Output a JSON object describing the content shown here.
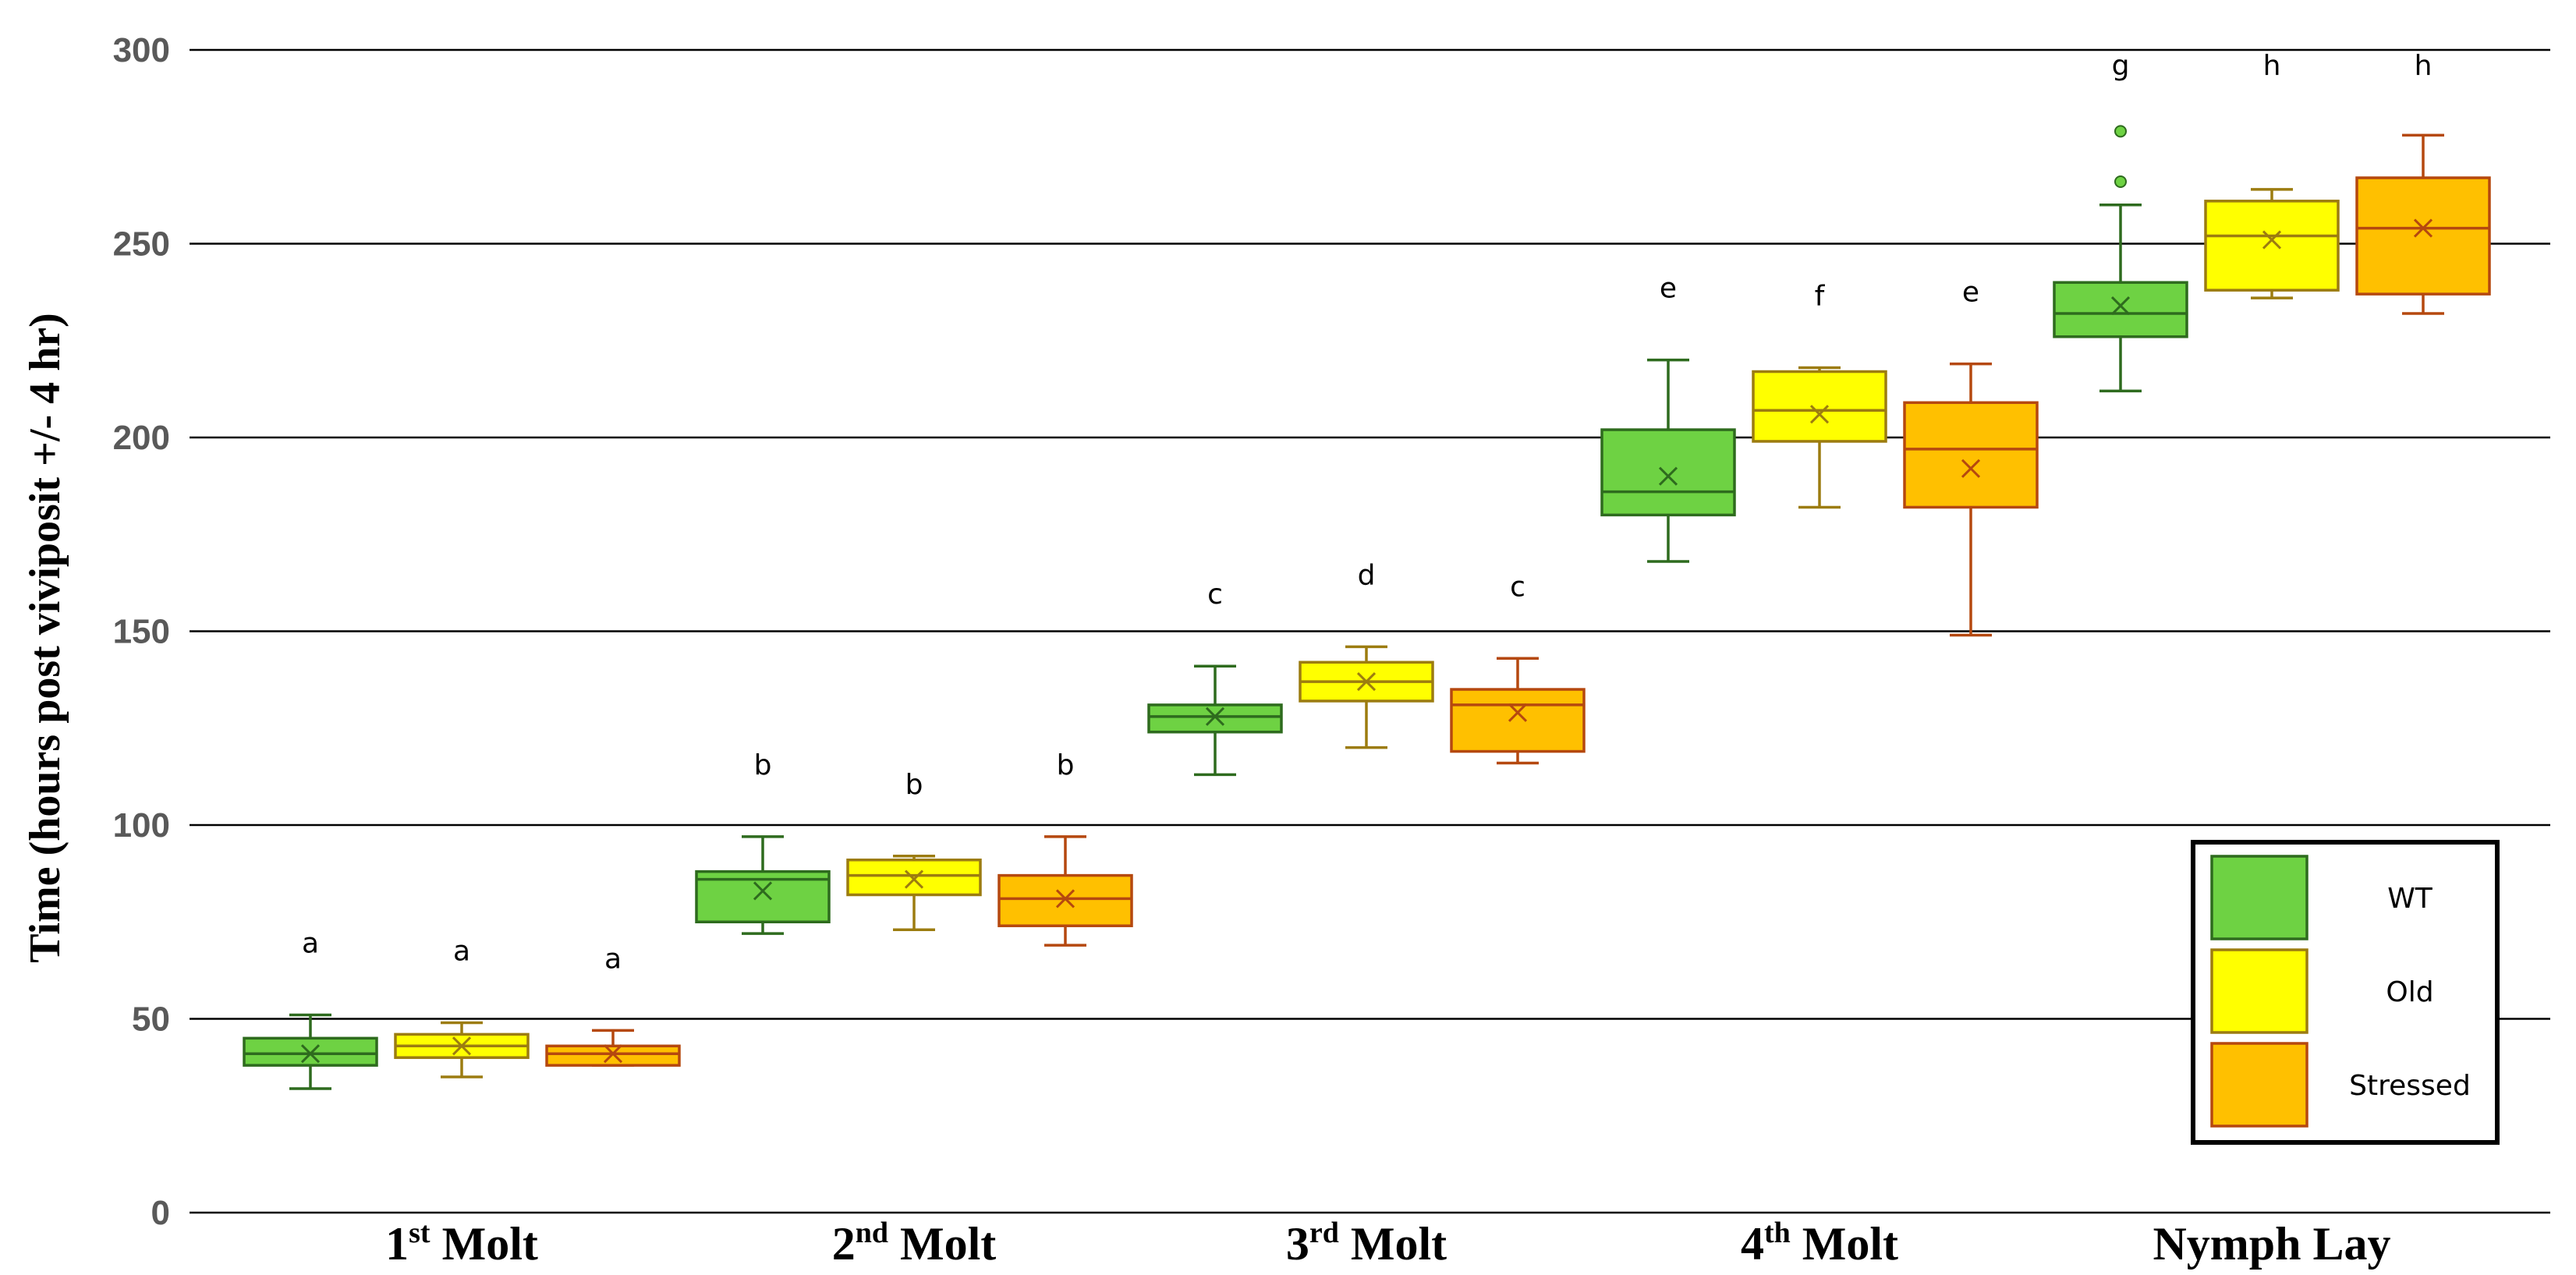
{
  "chart_data": {
    "type": "box",
    "ylabel": "Time (hours post viviposit +/- 4 hr)",
    "ylim": [
      0,
      300
    ],
    "yticks": [
      0,
      50,
      100,
      150,
      200,
      250,
      300
    ],
    "grid": true,
    "legend_position": "bottom-right",
    "categories": [
      {
        "main": "1",
        "sup": "st",
        "rest": " Molt"
      },
      {
        "main": "2",
        "sup": "nd",
        "rest": " Molt"
      },
      {
        "main": "3",
        "sup": "rd",
        "rest": " Molt"
      },
      {
        "main": "4",
        "sup": "th",
        "rest": " Molt"
      },
      {
        "main": "Nymph Lay",
        "sup": "",
        "rest": ""
      }
    ],
    "series": [
      {
        "name": "WT",
        "fill": "#6ed243",
        "stroke": "#2e6b1e",
        "boxes": [
          {
            "min": 32,
            "q1": 38,
            "median": 41,
            "q3": 45,
            "max": 51,
            "mean": 41,
            "letter": "a",
            "outliers": []
          },
          {
            "min": 72,
            "q1": 75,
            "median": 86,
            "q3": 88,
            "max": 97,
            "mean": 83,
            "letter": "b",
            "outliers": []
          },
          {
            "min": 113,
            "q1": 124,
            "median": 128,
            "q3": 131,
            "max": 141,
            "mean": 128,
            "letter": "c",
            "outliers": []
          },
          {
            "min": 168,
            "q1": 180,
            "median": 186,
            "q3": 202,
            "max": 220,
            "mean": 190,
            "letter": "e",
            "outliers": []
          },
          {
            "min": 212,
            "q1": 226,
            "median": 232,
            "q3": 240,
            "max": 260,
            "mean": 234,
            "letter": "g",
            "outliers": [
              266,
              279
            ]
          }
        ]
      },
      {
        "name": "Old",
        "fill": "#ffff00",
        "stroke": "#9c7c10",
        "boxes": [
          {
            "min": 35,
            "q1": 40,
            "median": 43,
            "q3": 46,
            "max": 49,
            "mean": 43,
            "letter": "a",
            "outliers": []
          },
          {
            "min": 73,
            "q1": 82,
            "median": 87,
            "q3": 91,
            "max": 92,
            "mean": 86,
            "letter": "b",
            "outliers": []
          },
          {
            "min": 120,
            "q1": 132,
            "median": 137,
            "q3": 142,
            "max": 146,
            "mean": 137,
            "letter": "d",
            "outliers": []
          },
          {
            "min": 182,
            "q1": 199,
            "median": 207,
            "q3": 217,
            "max": 218,
            "mean": 206,
            "letter": "f",
            "outliers": []
          },
          {
            "min": 236,
            "q1": 238,
            "median": 252,
            "q3": 261,
            "max": 264,
            "mean": 251,
            "letter": "h",
            "outliers": []
          }
        ]
      },
      {
        "name": "Stressed",
        "fill": "#ffc000",
        "stroke": "#b5480f",
        "boxes": [
          {
            "min": 38,
            "q1": 38,
            "median": 41,
            "q3": 43,
            "max": 47,
            "mean": 41,
            "letter": "a",
            "outliers": []
          },
          {
            "min": 69,
            "q1": 74,
            "median": 81,
            "q3": 87,
            "max": 97,
            "mean": 81,
            "letter": "b",
            "outliers": []
          },
          {
            "min": 116,
            "q1": 119,
            "median": 131,
            "q3": 135,
            "max": 143,
            "mean": 129,
            "letter": "c",
            "outliers": []
          },
          {
            "min": 149,
            "q1": 182,
            "median": 197,
            "q3": 209,
            "max": 219,
            "mean": 192,
            "letter": "e",
            "outliers": []
          },
          {
            "min": 232,
            "q1": 237,
            "median": 254,
            "q3": 267,
            "max": 278,
            "mean": 254,
            "letter": "h",
            "outliers": []
          }
        ]
      }
    ]
  },
  "colors": {
    "gridline": "#000000",
    "legend_border": "#000000"
  }
}
